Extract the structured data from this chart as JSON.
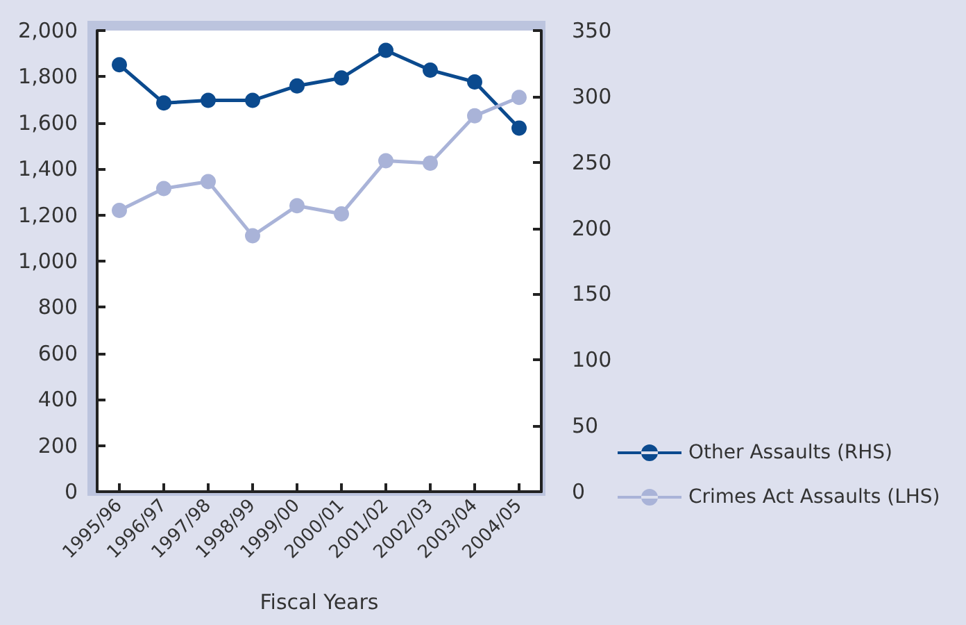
{
  "chart_data": {
    "type": "line",
    "xlabel": "Fiscal Years",
    "categories": [
      "1995/96",
      "1996/97",
      "1997/98",
      "1998/99",
      "1999/00",
      "2000/01",
      "2001/02",
      "2002/03",
      "2003/04",
      "2004/05"
    ],
    "series": [
      {
        "name": "Other Assaults (RHS)",
        "color": "#0b4a8e",
        "axis": "y2",
        "values": [
          324,
          295,
          297,
          297,
          308,
          314,
          335,
          320,
          311,
          276
        ]
      },
      {
        "name": "Crimes Act Assaults (LHS)",
        "color": "#a9b3d8",
        "values": [
          1220,
          1315,
          1345,
          1110,
          1240,
          1205,
          1435,
          1425,
          1630,
          1710
        ]
      }
    ],
    "ylim": [
      0,
      2000
    ],
    "yticks": [
      0,
      200,
      400,
      600,
      800,
      {
        "value": 1000,
        "label": "1,000"
      },
      {
        "value": 1200,
        "label": "1,200"
      },
      {
        "value": 1400,
        "label": "1,400"
      },
      {
        "value": 1600,
        "label": "1,600"
      },
      {
        "value": 1800,
        "label": "1,800"
      },
      {
        "value": 2000,
        "label": "2,000"
      }
    ],
    "y2lim": [
      0,
      350
    ],
    "y2ticks": [
      0,
      50,
      100,
      150,
      200,
      250,
      300,
      350
    ],
    "grid": false,
    "legend": "bottom right",
    "marker": "circle",
    "line_style": "solid"
  }
}
